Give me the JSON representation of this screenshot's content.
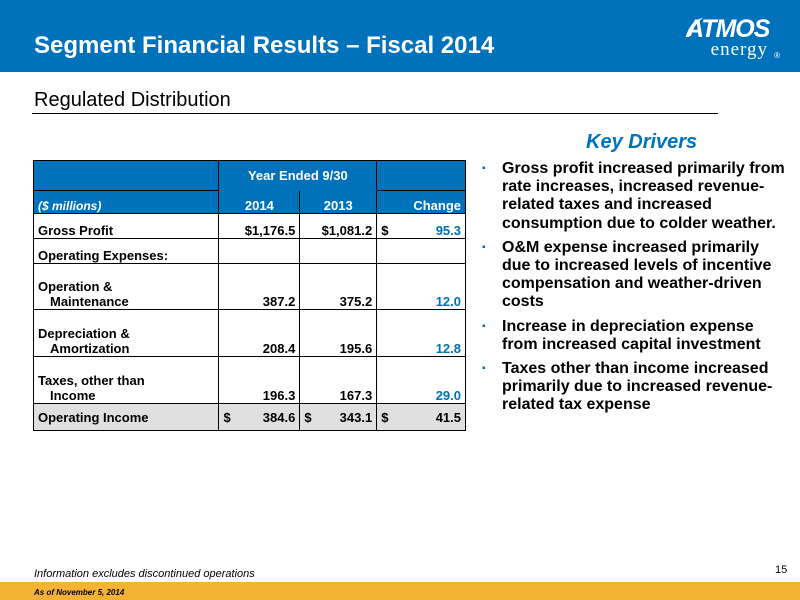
{
  "header": {
    "title": "Segment Financial Results – Fiscal 2014",
    "logo_main": "ATMOS",
    "logo_sub": "energy",
    "logo_reg": "®"
  },
  "section": {
    "title": "Regulated Distribution"
  },
  "table": {
    "period_label": "Year Ended  9/30",
    "units_label": "($ millions)",
    "columns": [
      "2014",
      "2013",
      "Change"
    ],
    "rows": [
      {
        "label": "Gross Profit",
        "label2": "",
        "v2014": "$1,176.5",
        "v2013": "$1,081.2",
        "change_prefix": "$",
        "change": "95.3"
      },
      {
        "label": "Operating Expenses:",
        "label2": "",
        "v2014": "",
        "v2013": "",
        "change_prefix": "",
        "change": ""
      },
      {
        "label": "Operation &",
        "label2": "Maintenance",
        "v2014": "387.2",
        "v2013": "375.2",
        "change_prefix": "",
        "change": "12.0"
      },
      {
        "label": "Depreciation &",
        "label2": "Amortization",
        "v2014": "208.4",
        "v2013": "195.6",
        "change_prefix": "",
        "change": "12.8"
      },
      {
        "label": "Taxes, other than",
        "label2": "Income",
        "v2014": "196.3",
        "v2013": "167.3",
        "change_prefix": "",
        "change": "29.0"
      },
      {
        "label": "Operating Income",
        "label2": "",
        "v2014_prefix": "$",
        "v2014": "384.6",
        "v2013_prefix": "$",
        "v2013": "343.1",
        "change_prefix": "$",
        "change": "41.5"
      }
    ]
  },
  "drivers": {
    "title": "Key Drivers",
    "items": [
      "Gross profit increased primarily from rate increases, increased revenue-related taxes and increased consumption due to colder weather.",
      "O&M expense increased primarily due to increased levels of incentive compensation and weather-driven costs",
      "Increase in depreciation expense from increased capital investment",
      "Taxes other than income increased primarily due to increased revenue-related tax expense"
    ]
  },
  "footer": {
    "note": "Information excludes discontinued operations",
    "page_number": "15",
    "date": "As of November 5, 2014"
  },
  "colors": {
    "primary_blue": "#0072BC",
    "footer_gold": "#F5B335",
    "highlight_gray": "#E0E0E0"
  }
}
